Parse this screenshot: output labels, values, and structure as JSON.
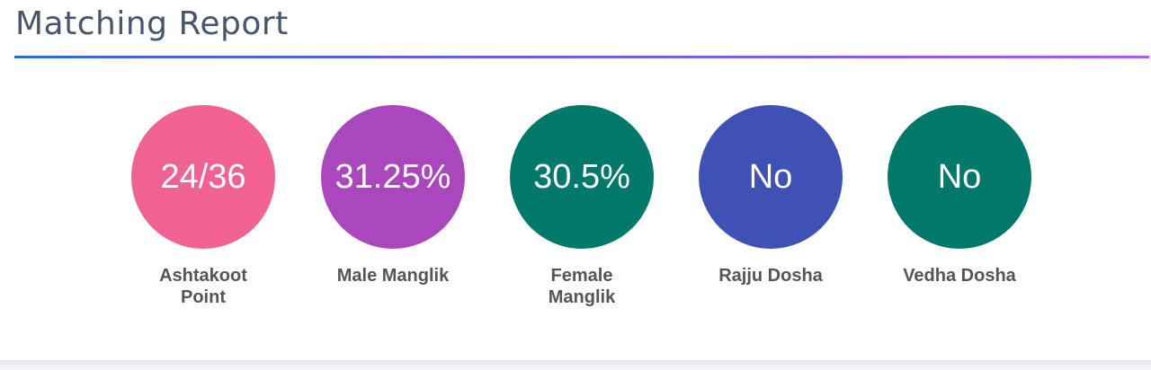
{
  "header": {
    "title": "Matching Report"
  },
  "items": [
    {
      "value": "24/36",
      "label": "Ashtakoot Point",
      "color": "#F06292"
    },
    {
      "value": "31.25%",
      "label": "Male Manglik",
      "color": "#AB47BC"
    },
    {
      "value": "30.5%",
      "label": "Female Manglik",
      "color": "#00796B"
    },
    {
      "value": "No",
      "label": "Rajju Dosha",
      "color": "#3F51B5"
    },
    {
      "value": "No",
      "label": "Vedha Dosha",
      "color": "#00796B"
    }
  ]
}
